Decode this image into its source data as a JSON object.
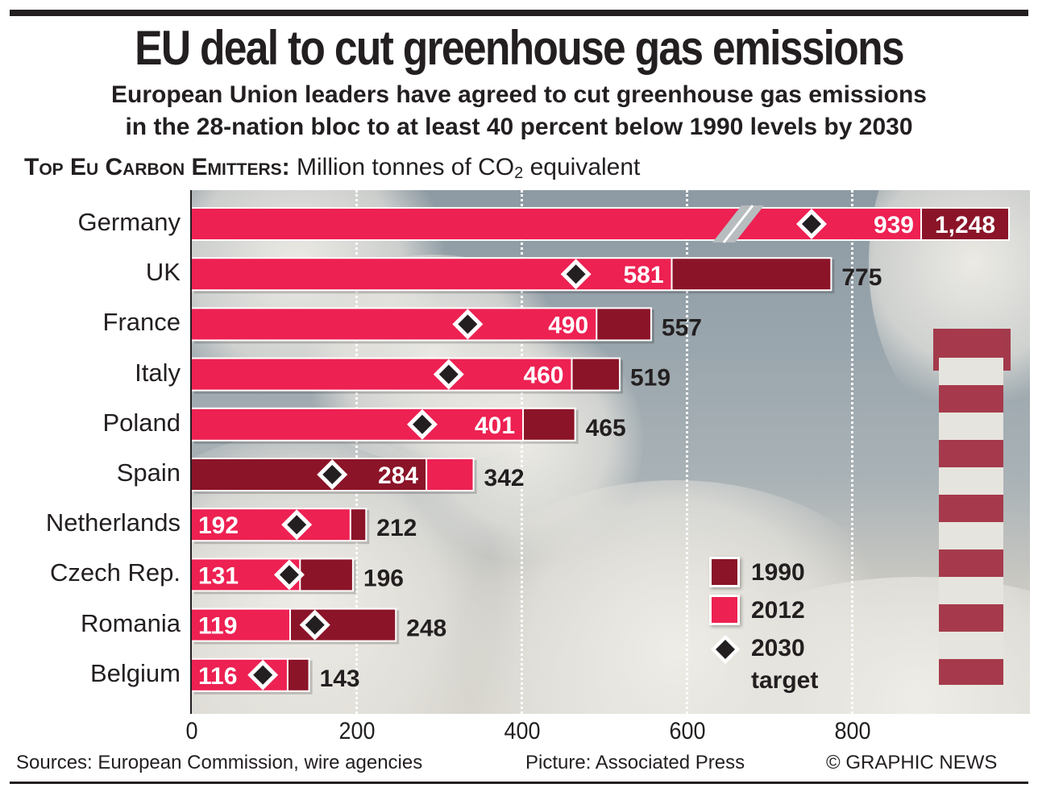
{
  "header": {
    "title": "EU deal to cut greenhouse gas emissions",
    "subtitle_line1": "European Union leaders have agreed to cut greenhouse gas emissions",
    "subtitle_line2": "in the 28-nation bloc to at least 40 percent below 1990 levels by 2030",
    "chart_heading_bold": "Top Eu Carbon Emitters:",
    "chart_heading_unit_pre": "Million tonnes of CO",
    "chart_heading_unit_sub": "2",
    "chart_heading_unit_post": " equivalent"
  },
  "colors": {
    "y1990": "#8b1428",
    "y2012": "#ed2152",
    "target": "#231f20",
    "text": "#231f20"
  },
  "chart_data": {
    "type": "bar",
    "orientation": "horizontal",
    "title": "Top EU carbon emitters",
    "xlabel": "Million tonnes of CO2 equivalent",
    "ylabel": "",
    "xlim": [
      0,
      1000
    ],
    "xticks": [
      "0",
      "200",
      "400",
      "600",
      "800"
    ],
    "x_axis_break": "Germany bar truncated (axis break)",
    "grid": "vertical dotted lines at 200, 400, 600, 800",
    "legend_position": "bottom-right",
    "categories": [
      "Germany",
      "UK",
      "France",
      "Italy",
      "Poland",
      "Spain",
      "Netherlands",
      "Czech Rep.",
      "Romania",
      "Belgium"
    ],
    "series": [
      {
        "name": "1990",
        "values": [
          1248,
          775,
          557,
          519,
          465,
          284,
          212,
          196,
          248,
          143
        ]
      },
      {
        "name": "2012",
        "values": [
          939,
          581,
          490,
          460,
          401,
          342,
          192,
          131,
          119,
          116
        ]
      },
      {
        "name": "2030 target",
        "values": [
          749,
          465,
          334,
          311,
          279,
          170,
          127,
          118,
          149,
          86
        ]
      }
    ],
    "value_labels": {
      "inside": [
        "939",
        "581",
        "490",
        "460",
        "401",
        "284",
        "192",
        "131",
        "119",
        "116"
      ],
      "outside": [
        "1,248",
        "775",
        "557",
        "519",
        "465",
        "342",
        "212",
        "196",
        "248",
        "143"
      ]
    }
  },
  "legend": {
    "items": [
      {
        "label": "1990"
      },
      {
        "label": "2012"
      },
      {
        "label": "2030",
        "label2": "target"
      }
    ]
  },
  "footer": {
    "sources": "Sources: European Commission, wire agencies",
    "picture": "Picture: Associated Press",
    "credit": "© GRAPHIC NEWS"
  }
}
